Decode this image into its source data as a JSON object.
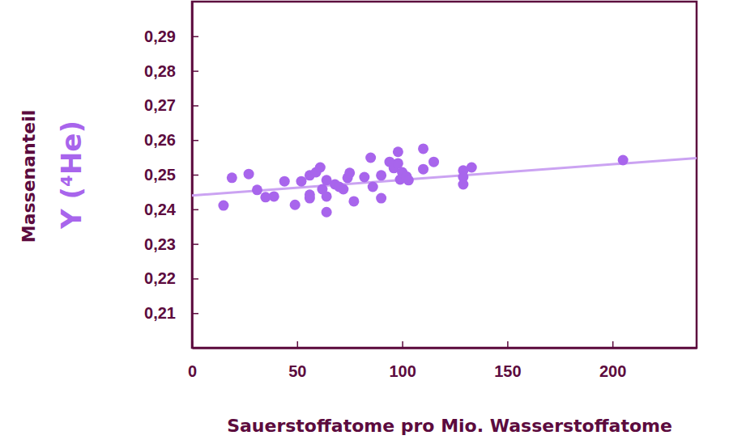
{
  "chart_data": {
    "type": "scatter",
    "x_label": "Sauerstoffatome pro Mio. Wasserstoffatome",
    "y_label": "Massenanteil",
    "y_sublabel": "Y (⁴He)",
    "xlim": [
      0,
      240
    ],
    "xticks": [
      0,
      50,
      100,
      150,
      200
    ],
    "ylim": [
      0.2,
      0.3
    ],
    "yticks": [
      {
        "value": 0.21,
        "label": "0,21"
      },
      {
        "value": 0.22,
        "label": "0,22"
      },
      {
        "value": 0.23,
        "label": "0,23"
      },
      {
        "value": 0.24,
        "label": "0,24"
      },
      {
        "value": 0.25,
        "label": "0,25"
      },
      {
        "value": 0.26,
        "label": "0,26"
      },
      {
        "value": 0.27,
        "label": "0,27"
      },
      {
        "value": 0.28,
        "label": "0,28"
      },
      {
        "value": 0.29,
        "label": "0,29"
      }
    ],
    "grid": false,
    "series": [
      {
        "type": "scatter",
        "color": "#a865ec",
        "marker": "circle",
        "x": [
          15,
          19,
          27,
          31,
          35,
          39,
          44,
          49,
          52,
          56,
          56,
          56,
          59,
          61,
          62,
          64,
          64,
          64,
          68,
          70,
          72,
          74,
          75,
          77,
          82,
          85,
          86,
          90,
          90,
          94,
          96,
          98,
          98,
          99,
          100,
          102,
          103,
          110,
          110,
          115,
          129,
          129,
          129,
          133,
          205
        ],
        "values": [
          0.2411,
          0.2491,
          0.2502,
          0.2456,
          0.2435,
          0.2437,
          0.2481,
          0.2413,
          0.2481,
          0.2432,
          0.2498,
          0.2442,
          0.2507,
          0.2521,
          0.2458,
          0.2484,
          0.2437,
          0.2392,
          0.2472,
          0.2465,
          0.2458,
          0.2491,
          0.2505,
          0.2423,
          0.2493,
          0.2549,
          0.2465,
          0.2498,
          0.2432,
          0.2537,
          0.2519,
          0.2533,
          0.2566,
          0.2486,
          0.2507,
          0.2495,
          0.2484,
          0.2575,
          0.2516,
          0.2537,
          0.2512,
          0.2493,
          0.2472,
          0.2521,
          0.2542
        ]
      },
      {
        "type": "line",
        "color": "#cba3f2",
        "line_style": "solid",
        "x": [
          0,
          240
        ],
        "values": [
          0.244,
          0.2548
        ]
      }
    ]
  }
}
